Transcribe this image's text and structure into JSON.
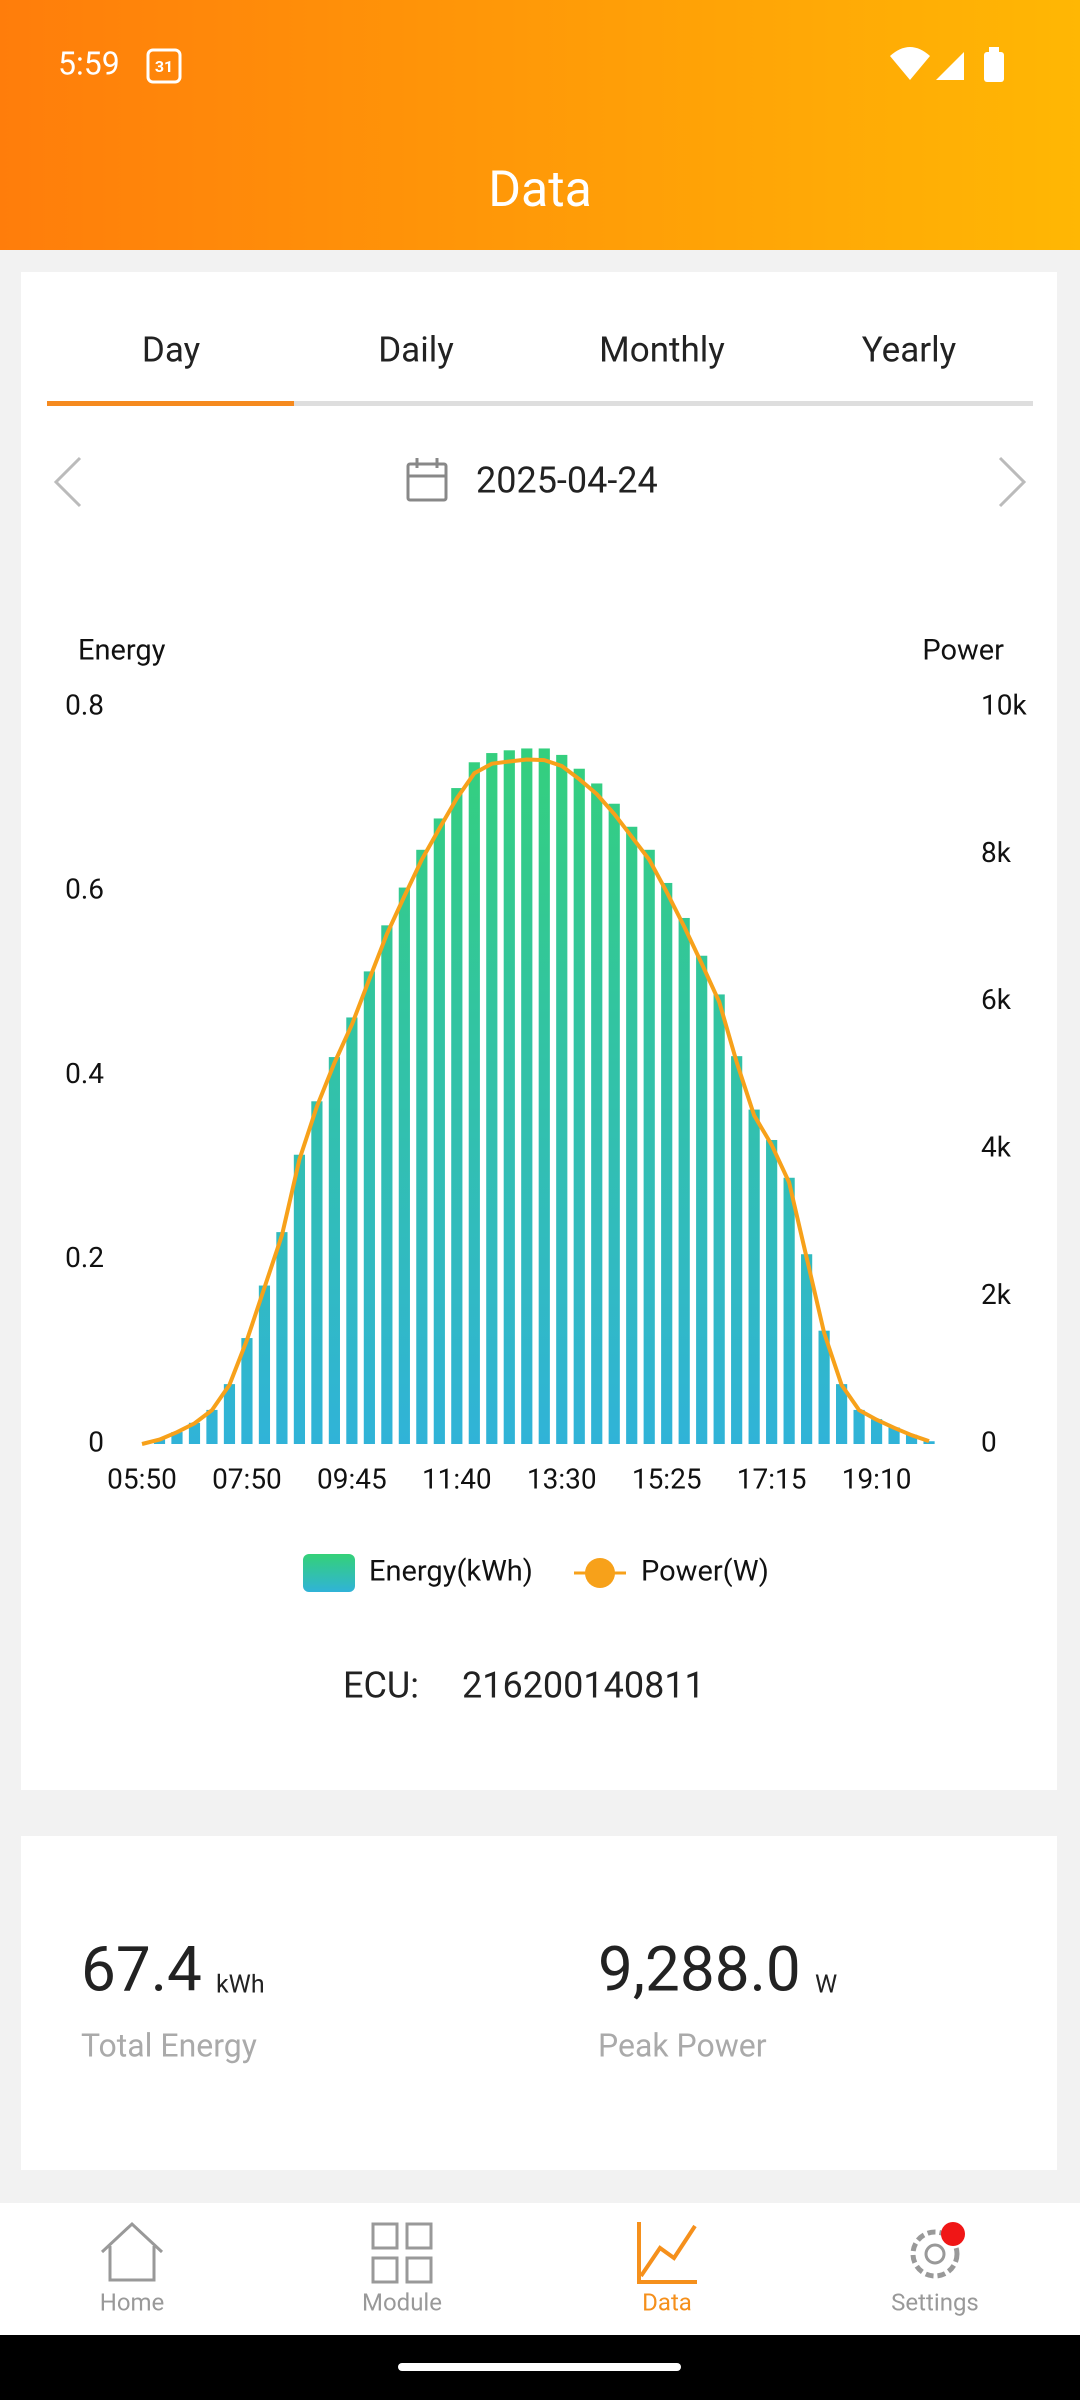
{
  "status_bar": {
    "time": "5:59",
    "calendar": "31"
  },
  "header": {
    "title": "Data"
  },
  "tabs": [
    "Day",
    "Daily",
    "Monthly",
    "Yearly"
  ],
  "date": "2025-04-24",
  "chart_data": {
    "type": "bar",
    "y_label": "Energy",
    "y2_label": "Power",
    "categories": [
      "05:50",
      null,
      null,
      null,
      null,
      null,
      "07:50",
      null,
      null,
      null,
      null,
      null,
      "09:45",
      null,
      null,
      null,
      null,
      null,
      "11:40",
      null,
      null,
      null,
      null,
      null,
      "13:30",
      null,
      null,
      null,
      null,
      null,
      "15:25",
      null,
      null,
      null,
      null,
      null,
      "17:15",
      null,
      null,
      null,
      null,
      null,
      "19:10",
      null,
      null,
      null
    ],
    "series": [
      {
        "name": "Energy(kWh)",
        "type": "bar",
        "gradient": [
          "#34d178",
          "#30b3d8"
        ],
        "values": [
          0,
          0.005,
          0.013,
          0.023,
          0.037,
          0.065,
          0.115,
          0.172,
          0.23,
          0.314,
          0.372,
          0.42,
          0.463,
          0.513,
          0.563,
          0.604,
          0.645,
          0.679,
          0.712,
          0.74,
          0.75,
          0.753,
          0.755,
          0.755,
          0.748,
          0.733,
          0.717,
          0.695,
          0.67,
          0.645,
          0.609,
          0.571,
          0.53,
          0.488,
          0.421,
          0.363,
          0.33,
          0.289,
          0.206,
          0.123,
          0.065,
          0.037,
          0.027,
          0.018,
          0.01,
          0.003
        ]
      },
      {
        "name": "Power(W)",
        "type": "line",
        "axis": "y2",
        "color": "#f7a11a",
        "values": [
          0,
          60,
          160,
          280,
          460,
          800,
          1410,
          2120,
          2830,
          3860,
          4580,
          5170,
          5690,
          6310,
          6920,
          7430,
          7930,
          8350,
          8760,
          9100,
          9230,
          9260,
          9288,
          9280,
          9200,
          9020,
          8820,
          8550,
          8240,
          7930,
          7490,
          7020,
          6520,
          6000,
          5180,
          4460,
          4060,
          3550,
          2530,
          1510,
          800,
          460,
          330,
          220,
          120,
          40
        ]
      }
    ],
    "ylim": [
      0,
      0.8
    ],
    "yticks": [
      0,
      0.2,
      0.4,
      0.6,
      0.8
    ],
    "y2lim": [
      0,
      10000
    ],
    "y2ticks": [
      0,
      {
        "value": 2000,
        "label": "2k"
      },
      {
        "value": 4000,
        "label": "4k"
      },
      {
        "value": 6000,
        "label": "6k"
      },
      {
        "value": 8000,
        "label": "8k"
      },
      {
        "value": 10000,
        "label": "10k"
      }
    ],
    "grid": false
  },
  "ecu": {
    "label": "ECU:",
    "id": "216200140811"
  },
  "stats": [
    {
      "value": "67.4",
      "unit": "kWh",
      "label": "Total Energy"
    },
    {
      "value": "9,288.0",
      "unit": "W",
      "label": "Peak Power"
    }
  ],
  "nav": [
    "Home",
    "Module",
    "Data",
    "Settings"
  ]
}
